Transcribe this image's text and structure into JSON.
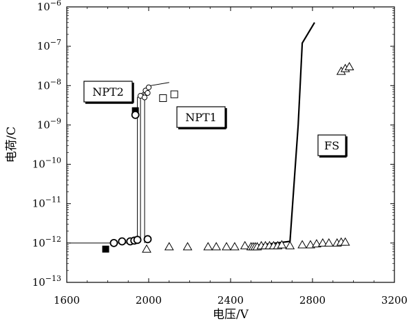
{
  "chart_data": {
    "type": "scatter",
    "title": "",
    "xlabel": "电压/V",
    "ylabel": "电荷/C",
    "xlim": [
      1600,
      3200
    ],
    "ylim": [
      1e-13,
      1e-06
    ],
    "y_scale": "log",
    "grid": false,
    "x_ticks": [
      1600,
      2000,
      2400,
      2800,
      3200
    ],
    "x_tick_labels": [
      "1600",
      "2000",
      "2400",
      "2800",
      "3200"
    ],
    "y_ticks": [
      {
        "exp": -13,
        "value": 1e-13
      },
      {
        "exp": -12,
        "value": 1e-12
      },
      {
        "exp": -11,
        "value": 1e-11
      },
      {
        "exp": -10,
        "value": 1e-10
      },
      {
        "exp": -9,
        "value": 1e-09
      },
      {
        "exp": -8,
        "value": 1e-08
      },
      {
        "exp": -7,
        "value": 1e-07
      },
      {
        "exp": -6,
        "value": 1e-06
      }
    ],
    "y_tick_base": "10",
    "annotations": [
      "NPT2",
      "NPT1",
      "FS"
    ],
    "series": [
      {
        "marker": "filled-square",
        "points": [
          [
            1790,
            7e-13
          ],
          [
            1935,
            2.3e-09
          ]
        ]
      },
      {
        "marker": "bold-circle",
        "points": [
          [
            1830,
            1e-12
          ],
          [
            1870,
            1.1e-12
          ],
          [
            1910,
            1.1e-12
          ],
          [
            1930,
            1.15e-12
          ],
          [
            1945,
            1.2e-12
          ],
          [
            1995,
            1.25e-12
          ],
          [
            1935,
            1.8e-09
          ]
        ]
      },
      {
        "marker": "small-circle",
        "points": [
          [
            1960,
            5.5e-09
          ],
          [
            1980,
            5e-09
          ],
          [
            1985,
            7.5e-09
          ],
          [
            1995,
            6.5e-09
          ],
          [
            2000,
            9e-09
          ]
        ]
      },
      {
        "marker": "open-square",
        "points": [
          [
            2070,
            4.8e-09
          ],
          [
            2125,
            6e-09
          ]
        ]
      },
      {
        "marker": "open-triangle",
        "points": [
          [
            1990,
            7e-13
          ],
          [
            2100,
            8e-13
          ],
          [
            2190,
            8e-13
          ],
          [
            2290,
            8e-13
          ],
          [
            2330,
            8e-13
          ],
          [
            2380,
            8e-13
          ],
          [
            2420,
            8e-13
          ],
          [
            2470,
            8.5e-13
          ],
          [
            2500,
            8e-13
          ],
          [
            2510,
            8e-13
          ],
          [
            2520,
            8e-13
          ],
          [
            2530,
            8e-13
          ],
          [
            2550,
            8.5e-13
          ],
          [
            2570,
            8.5e-13
          ],
          [
            2590,
            8.5e-13
          ],
          [
            2610,
            8.5e-13
          ],
          [
            2630,
            8.5e-13
          ],
          [
            2650,
            9e-13
          ],
          [
            2690,
            8.5e-13
          ],
          [
            2750,
            9e-13
          ],
          [
            2790,
            9e-13
          ],
          [
            2820,
            9.5e-13
          ],
          [
            2850,
            1e-12
          ],
          [
            2880,
            1e-12
          ],
          [
            2920,
            1e-12
          ],
          [
            2940,
            1.05e-12
          ],
          [
            2960,
            1.05e-12
          ],
          [
            2940,
            2.3e-08
          ],
          [
            2960,
            2.7e-08
          ],
          [
            2980,
            3e-08
          ]
        ]
      }
    ],
    "lines": [
      {
        "style": "thin",
        "points": [
          [
            1600,
            1e-12
          ],
          [
            1945,
            1e-12
          ],
          [
            1945,
            5e-09
          ],
          [
            2010,
            1e-08
          ],
          [
            2100,
            1.2e-08
          ]
        ]
      },
      {
        "style": "thin",
        "points": [
          [
            1960,
            1.2e-12
          ],
          [
            1960,
            5e-09
          ],
          [
            1985,
            7e-09
          ]
        ]
      },
      {
        "style": "thin",
        "points": [
          [
            1980,
            1e-12
          ],
          [
            1980,
            5e-09
          ],
          [
            2000,
            7e-09
          ]
        ]
      },
      {
        "style": "bold",
        "points": [
          [
            2510,
            8.5e-13
          ],
          [
            2690,
            1.1e-12
          ],
          [
            2730,
            1e-09
          ],
          [
            2750,
            1.2e-07
          ],
          [
            2810,
            4e-07
          ]
        ]
      }
    ]
  }
}
